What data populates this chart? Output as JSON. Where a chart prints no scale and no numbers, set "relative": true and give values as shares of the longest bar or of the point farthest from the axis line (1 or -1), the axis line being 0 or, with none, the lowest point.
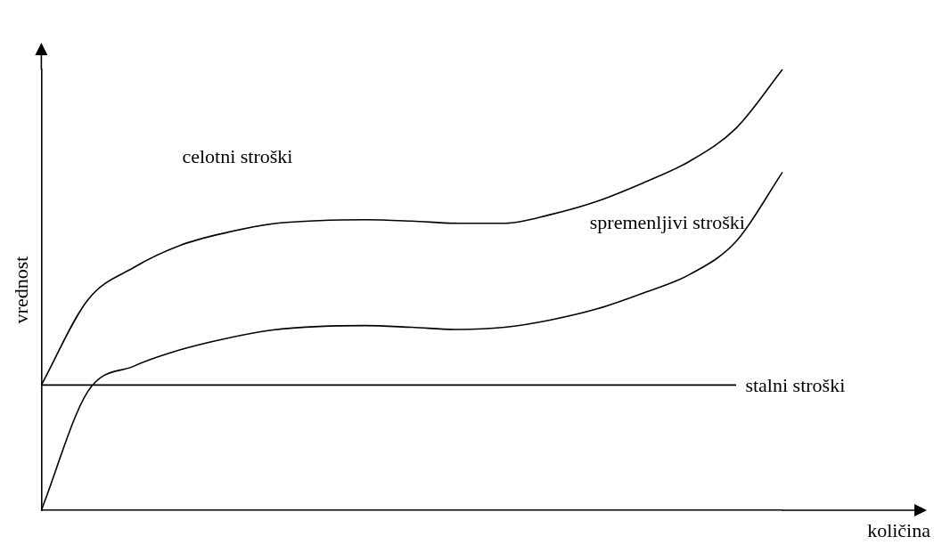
{
  "chart_data": {
    "type": "line",
    "relative": true,
    "xlabel": "količina",
    "ylabel": "vrednost",
    "grid": false,
    "legend": false,
    "marker": "none",
    "line_style": "solid",
    "categories": [
      null,
      null,
      null,
      null,
      null,
      null,
      null,
      null,
      null,
      null,
      null,
      null,
      null,
      null,
      null,
      null,
      null
    ],
    "series": [
      {
        "name": "celotni stroški",
        "color": "#000000",
        "values": [
          0.284,
          0.477,
          0.551,
          0.601,
          0.63,
          0.65,
          0.657,
          0.659,
          0.656,
          0.651,
          0.651,
          0.671,
          0.701,
          0.743,
          0.792,
          0.867,
          1
        ]
      },
      {
        "name": "spremenljivi stroški",
        "color": "#000000",
        "values": [
          0,
          0.269,
          0.327,
          0.364,
          0.39,
          0.409,
          0.417,
          0.419,
          0.415,
          0.41,
          0.415,
          0.432,
          0.457,
          0.493,
          0.535,
          0.61,
          0.767
        ]
      },
      {
        "name": "stalni stroški",
        "color": "#000000",
        "values": [
          0.284,
          0.284,
          0.284,
          0.284,
          0.284,
          0.284,
          0.284,
          0.284,
          0.284,
          0.284,
          0.284,
          0.284,
          0.284,
          0.284,
          0.284,
          0.284,
          null
        ]
      }
    ]
  }
}
